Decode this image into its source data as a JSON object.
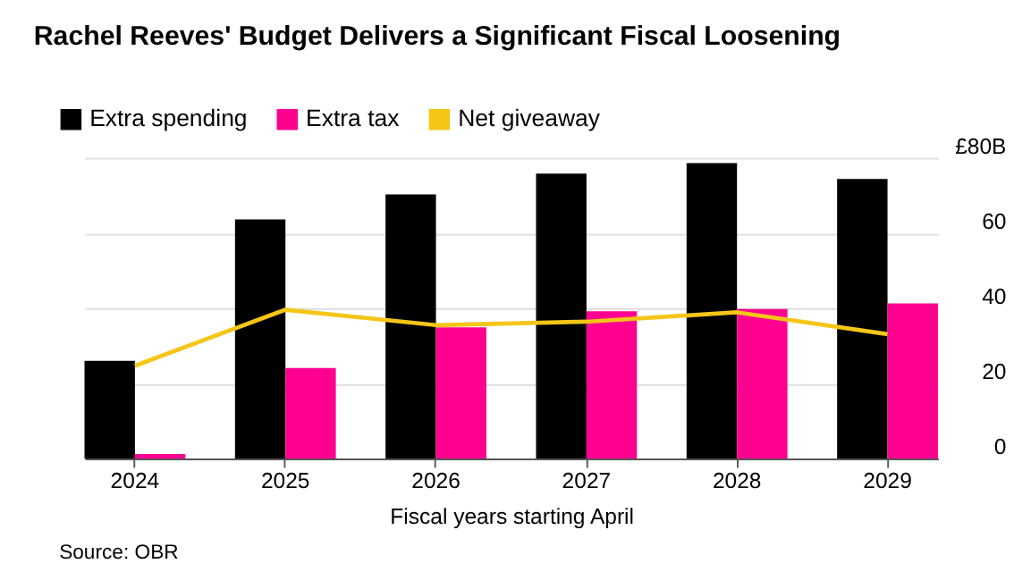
{
  "chart_data": {
    "type": "bar",
    "title": "Rachel Reeves' Budget Delivers a Significant Fiscal Loosening",
    "categories": [
      "2024",
      "2025",
      "2026",
      "2027",
      "2028",
      "2029"
    ],
    "series": [
      {
        "name": "Extra spending",
        "color": "#000000",
        "values": [
          26,
          63.6,
          70.3,
          75.8,
          78.6,
          74.4
        ]
      },
      {
        "name": "Extra tax",
        "color": "#ff0090",
        "values": [
          1.2,
          24.1,
          34.9,
          39.2,
          39.8,
          41.3
        ]
      },
      {
        "name": "Net giveaway",
        "type": "line",
        "color": "#f5c518",
        "values": [
          24.7,
          39.6,
          35.5,
          36.4,
          38.9,
          33.1
        ]
      }
    ],
    "xlabel": "Fiscal years starting April",
    "ylim": [
      0,
      80
    ],
    "yticks": [
      0,
      20,
      40,
      60,
      {
        "value": 80,
        "label": "£80B"
      }
    ],
    "grid": "y",
    "legend": "top left",
    "annotations": [
      "Source: OBR"
    ]
  }
}
